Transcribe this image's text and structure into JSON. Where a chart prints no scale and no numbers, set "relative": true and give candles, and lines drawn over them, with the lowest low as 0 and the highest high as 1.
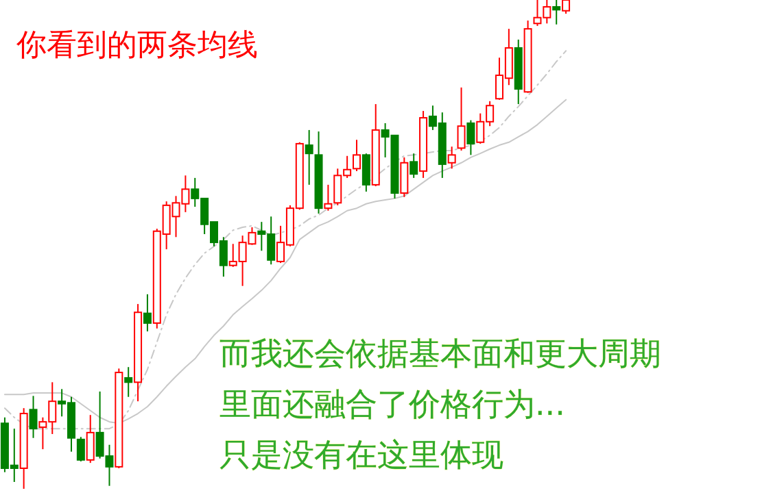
{
  "chart_data": {
    "type": "candlestick",
    "relative": true,
    "title": "你看到的两条均线",
    "annotations": [
      "而我还会依据基本面和更大周期",
      "里面还融合了价格行为...",
      "只是没有在这里体现"
    ],
    "categories": [
      null,
      null,
      null,
      null,
      null,
      null,
      null,
      null,
      null,
      null,
      null,
      null,
      null,
      null,
      null,
      null,
      null,
      null,
      null,
      null,
      null,
      null,
      null,
      null,
      null,
      null,
      null,
      null,
      null,
      null,
      null,
      null,
      null,
      null,
      null,
      null,
      null,
      null,
      null,
      null,
      null,
      null,
      null,
      null,
      null,
      null,
      null,
      null,
      null,
      null,
      null,
      null,
      null,
      null,
      null,
      null,
      null,
      null,
      null,
      null
    ],
    "ohlc": [
      [
        0.134,
        0.146,
        0.034,
        0.042
      ],
      [
        0.048,
        0.123,
        0.014,
        0.042
      ],
      [
        0.042,
        0.165,
        0,
        0.154
      ],
      [
        0.162,
        0.19,
        0.104,
        0.123
      ],
      [
        0.126,
        0.146,
        0.081,
        0.137
      ],
      [
        0.137,
        0.218,
        0.112,
        0.179
      ],
      [
        0.179,
        0.204,
        0.148,
        0.174
      ],
      [
        0.176,
        0.188,
        0.076,
        0.104
      ],
      [
        0.101,
        0.106,
        0.056,
        0.059
      ],
      [
        0.059,
        0.151,
        0.053,
        0.115
      ],
      [
        0.115,
        0.199,
        0.062,
        0.067
      ],
      [
        0.067,
        0.09,
        0.006,
        0.045
      ],
      [
        0.045,
        0.246,
        0.042,
        0.238
      ],
      [
        0.227,
        0.249,
        0.188,
        0.218
      ],
      [
        0.218,
        0.378,
        0.179,
        0.361
      ],
      [
        0.359,
        0.398,
        0.322,
        0.339
      ],
      [
        0.339,
        0.532,
        0.328,
        0.527
      ],
      [
        0.521,
        0.588,
        0.49,
        0.58
      ],
      [
        0.557,
        0.599,
        0.515,
        0.585
      ],
      [
        0.583,
        0.641,
        0.566,
        0.613
      ],
      [
        0.613,
        0.636,
        0.577,
        0.594
      ],
      [
        0.594,
        0.594,
        0.521,
        0.541
      ],
      [
        0.546,
        0.546,
        0.496,
        0.504
      ],
      [
        0.507,
        0.515,
        0.434,
        0.457
      ],
      [
        0.457,
        0.501,
        0.454,
        0.465
      ],
      [
        0.465,
        0.518,
        0.415,
        0.504
      ],
      [
        0.501,
        0.535,
        0.499,
        0.524
      ],
      [
        0.527,
        0.546,
        0.487,
        0.521
      ],
      [
        0.521,
        0.557,
        0.459,
        0.468
      ],
      [
        0.465,
        0.538,
        0.462,
        0.504
      ],
      [
        0.499,
        0.58,
        0.496,
        0.574
      ],
      [
        0.574,
        0.709,
        0.571,
        0.706
      ],
      [
        0.703,
        0.734,
        0.622,
        0.686
      ],
      [
        0.683,
        0.731,
        0.563,
        0.574
      ],
      [
        0.574,
        0.622,
        0.569,
        0.583
      ],
      [
        0.585,
        0.655,
        0.58,
        0.641
      ],
      [
        0.641,
        0.681,
        0.636,
        0.653
      ],
      [
        0.655,
        0.714,
        0.65,
        0.683
      ],
      [
        0.683,
        0.686,
        0.608,
        0.622
      ],
      [
        0.622,
        0.787,
        0.619,
        0.734
      ],
      [
        0.734,
        0.748,
        0.678,
        0.72
      ],
      [
        0.723,
        0.723,
        0.594,
        0.605
      ],
      [
        0.605,
        0.678,
        0.597,
        0.667
      ],
      [
        0.669,
        0.686,
        0.636,
        0.644
      ],
      [
        0.65,
        0.773,
        0.636,
        0.759
      ],
      [
        0.762,
        0.784,
        0.734,
        0.742
      ],
      [
        0.748,
        0.77,
        0.636,
        0.664
      ],
      [
        0.667,
        0.7,
        0.655,
        0.683
      ],
      [
        0.697,
        0.821,
        0.692,
        0.742
      ],
      [
        0.748,
        0.754,
        0.683,
        0.706
      ],
      [
        0.709,
        0.768,
        0.706,
        0.751
      ],
      [
        0.751,
        0.793,
        0.742,
        0.784
      ],
      [
        0.798,
        0.882,
        0.796,
        0.846
      ],
      [
        0.84,
        0.941,
        0.826,
        0.902
      ],
      [
        0.902,
        0.919,
        0.787,
        0.818
      ],
      [
        0.812,
        0.958,
        0.81,
        0.941
      ],
      [
        0.952,
        1,
        0.947,
        0.964
      ],
      [
        0.964,
        1,
        0.952,
        0.986
      ],
      [
        0.986,
        1,
        0.95,
        0.98
      ],
      [
        0.978,
        1,
        0.972,
        1
      ]
    ],
    "colors": [
      "#008000",
      "#008000",
      "#ff0000",
      "#008000",
      "#ff0000",
      "#ff0000",
      "#008000",
      "#008000",
      "#008000",
      "#ff0000",
      "#008000",
      "#008000",
      "#ff0000",
      "#008000",
      "#ff0000",
      "#008000",
      "#ff0000",
      "#ff0000",
      "#ff0000",
      "#ff0000",
      "#008000",
      "#008000",
      "#008000",
      "#008000",
      "#ff0000",
      "#ff0000",
      "#ff0000",
      "#008000",
      "#008000",
      "#ff0000",
      "#ff0000",
      "#ff0000",
      "#008000",
      "#008000",
      "#ff0000",
      "#ff0000",
      "#ff0000",
      "#ff0000",
      "#008000",
      "#ff0000",
      "#008000",
      "#008000",
      "#ff0000",
      "#008000",
      "#ff0000",
      "#008000",
      "#008000",
      "#ff0000",
      "#ff0000",
      "#008000",
      "#ff0000",
      "#ff0000",
      "#ff0000",
      "#ff0000",
      "#008000",
      "#ff0000",
      "#ff0000",
      "#ff0000",
      "#008000",
      "#ff0000"
    ],
    "series": [
      {
        "type": "line",
        "color": "#c8c8c8",
        "line_style": "dashed",
        "values": [
          0.165,
          0.146,
          0.132,
          0.123,
          0.123,
          0.123,
          0.123,
          0.123,
          0.123,
          0.123,
          0.123,
          0.123,
          0.132,
          0.16,
          0.202,
          0.244,
          0.3,
          0.356,
          0.398,
          0.431,
          0.459,
          0.482,
          0.496,
          0.51,
          0.529,
          0.535,
          0.538,
          0.529,
          0.518,
          0.524,
          0.529,
          0.538,
          0.552,
          0.56,
          0.574,
          0.585,
          0.599,
          0.613,
          0.625,
          0.639,
          0.655,
          0.669,
          0.681,
          0.683,
          0.686,
          0.689,
          0.692,
          0.692,
          0.697,
          0.703,
          0.711,
          0.723,
          0.739,
          0.762,
          0.782,
          0.804,
          0.826,
          0.849,
          0.874,
          0.896
        ]
      },
      {
        "type": "line",
        "color": "#c8c8c8",
        "line_style": "solid",
        "values": [
          0.193,
          0.193,
          0.193,
          0.196,
          0.196,
          0.196,
          0.196,
          0.188,
          0.174,
          0.16,
          0.146,
          0.137,
          0.134,
          0.143,
          0.154,
          0.168,
          0.188,
          0.21,
          0.23,
          0.249,
          0.266,
          0.291,
          0.314,
          0.333,
          0.356,
          0.373,
          0.389,
          0.406,
          0.426,
          0.451,
          0.473,
          0.51,
          0.524,
          0.538,
          0.546,
          0.557,
          0.569,
          0.574,
          0.583,
          0.588,
          0.591,
          0.594,
          0.599,
          0.613,
          0.627,
          0.641,
          0.65,
          0.658,
          0.667,
          0.678,
          0.686,
          0.695,
          0.703,
          0.709,
          0.72,
          0.731,
          0.745,
          0.762,
          0.779,
          0.796
        ]
      }
    ]
  }
}
